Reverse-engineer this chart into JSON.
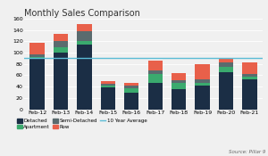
{
  "title": "Monthly Sales Comparison",
  "categories": [
    "Feb-12",
    "Feb-13",
    "Feb-14",
    "Feb-15",
    "Feb-16",
    "Feb-17",
    "Feb-18",
    "Feb-19",
    "Feb-20",
    "Feb-21"
  ],
  "detached": [
    90,
    100,
    115,
    39,
    29,
    47,
    35,
    42,
    65,
    53
  ],
  "apartment": [
    3,
    10,
    5,
    3,
    8,
    16,
    12,
    5,
    10,
    5
  ],
  "semi_detached": [
    4,
    10,
    18,
    3,
    4,
    5,
    4,
    6,
    8,
    5
  ],
  "row": [
    21,
    13,
    12,
    5,
    6,
    18,
    13,
    27,
    7,
    20
  ],
  "ten_yr_avg": 90,
  "ylim": [
    0,
    160
  ],
  "yticks": [
    0,
    20,
    40,
    60,
    80,
    100,
    120,
    140,
    160
  ],
  "colors": {
    "detached": "#1b2e45",
    "apartment": "#3aaa6e",
    "semi_detached": "#5a6b6e",
    "row": "#e8604a",
    "ten_yr_avg": "#5bbcd6"
  },
  "source_text": "Source: Pillar 9",
  "background_color": "#f0f0f0"
}
